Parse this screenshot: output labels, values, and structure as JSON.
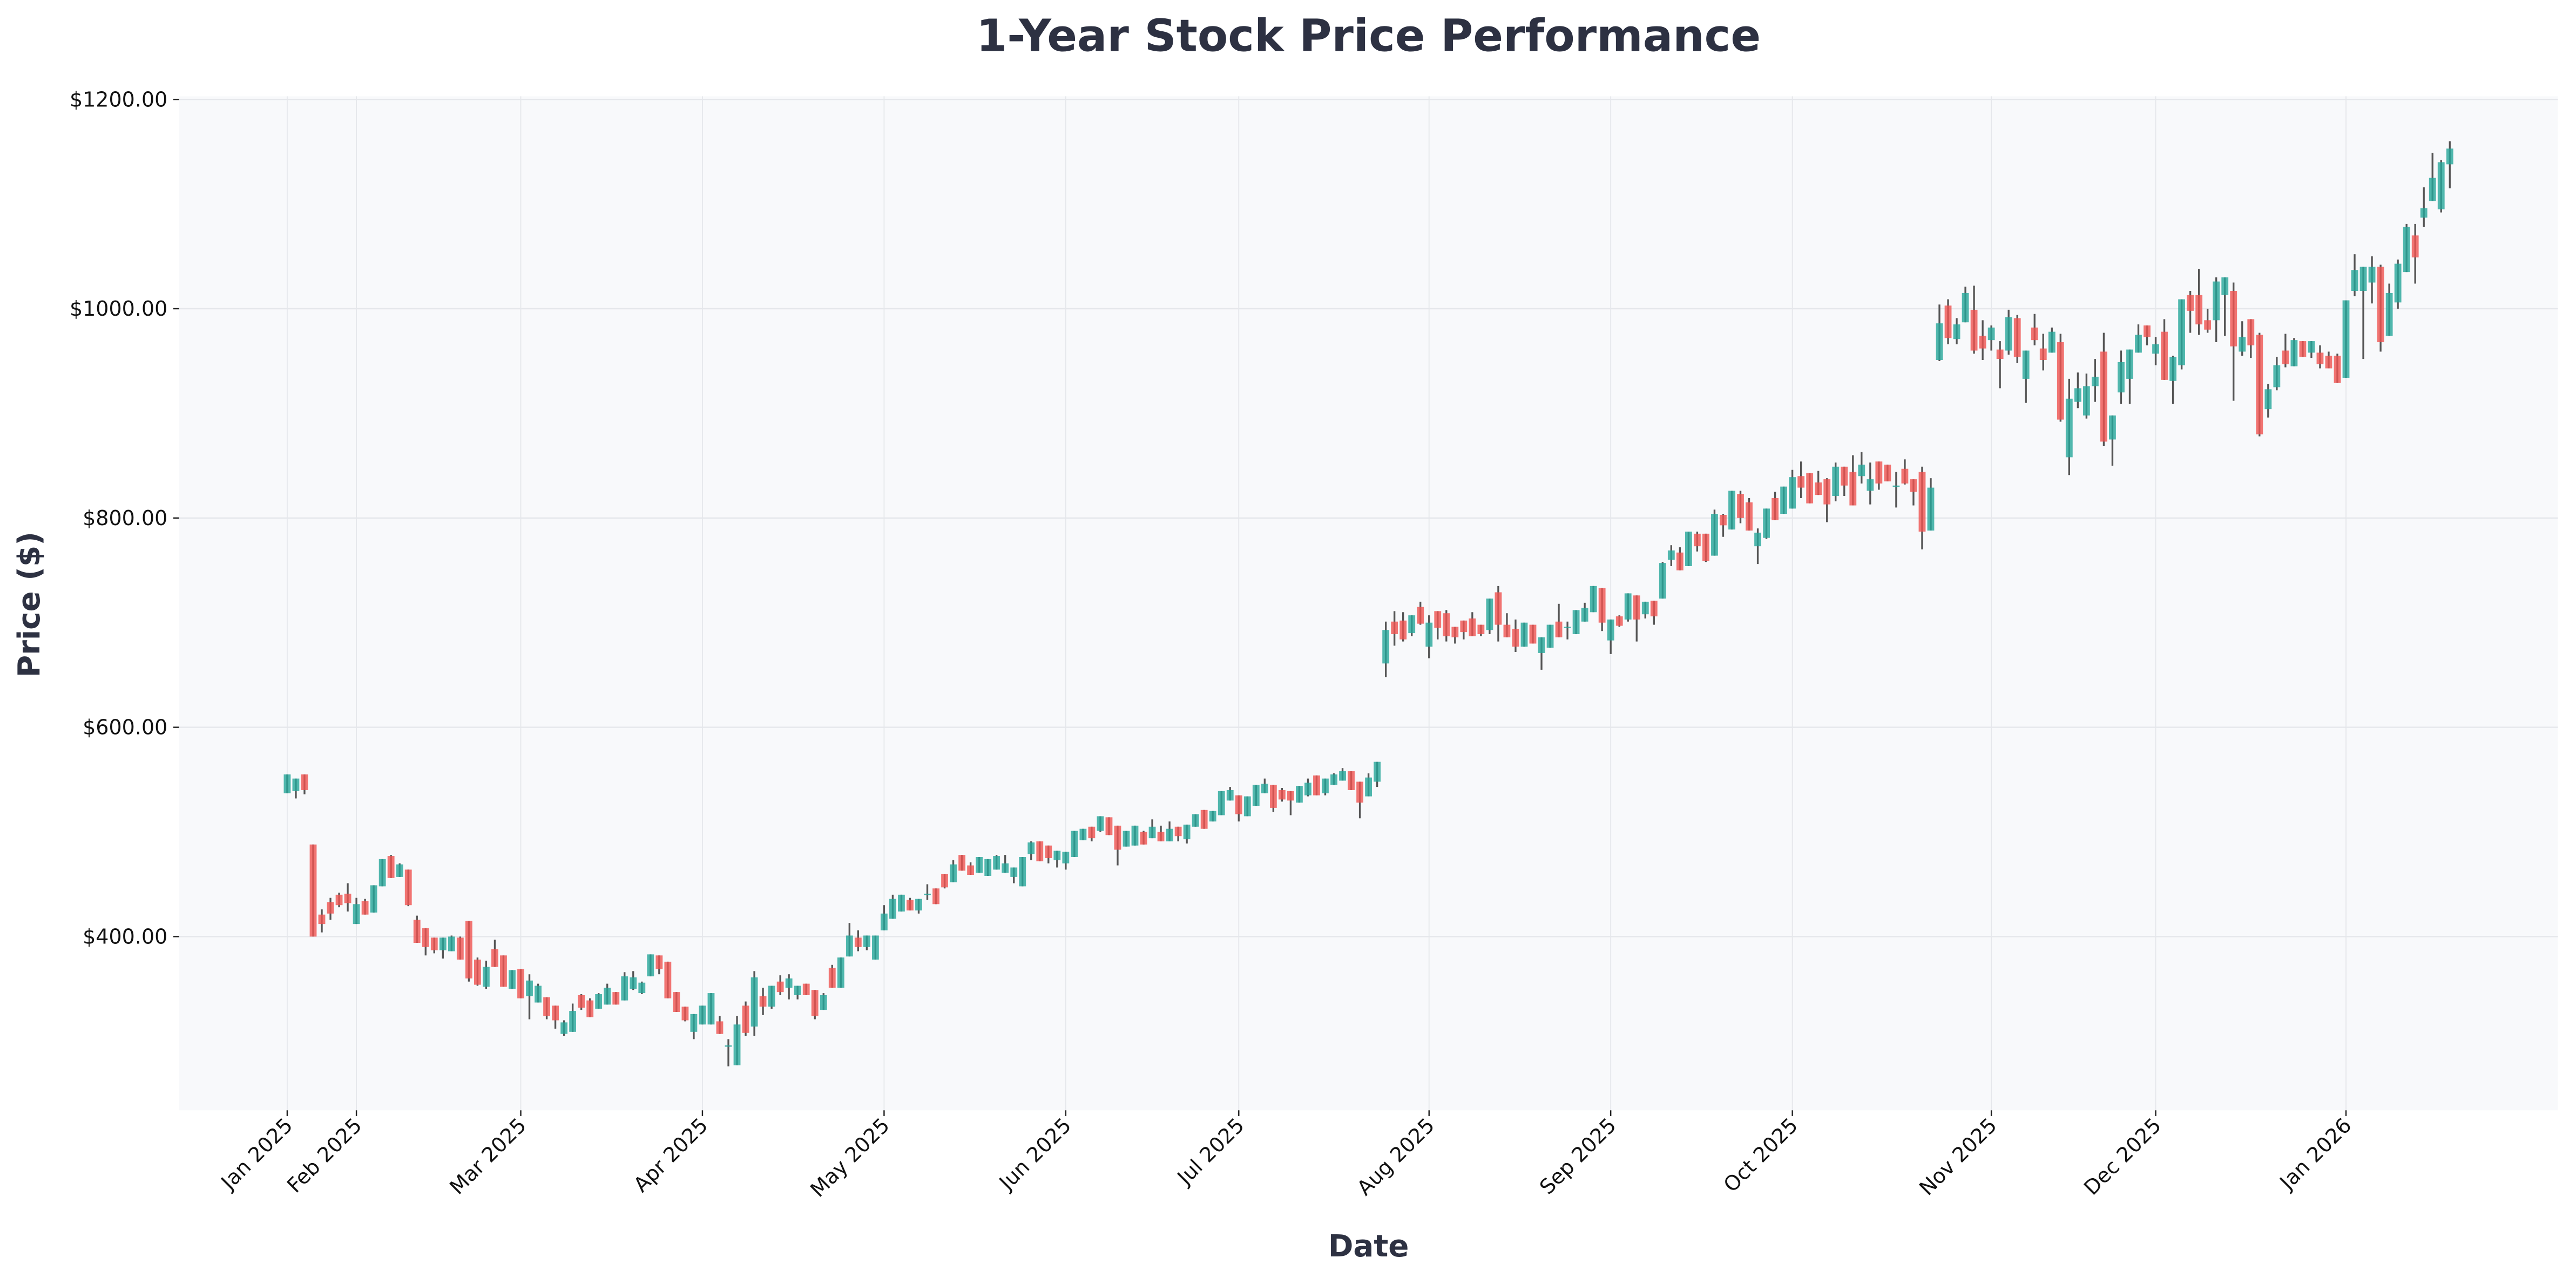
{
  "chart_data": {
    "type": "candlestick",
    "title": "1-Year Stock Price Performance",
    "xlabel": "Date",
    "ylabel": "Price ($)",
    "ylim": [
      234,
      1203
    ],
    "xlim": [
      -12.5,
      262.5
    ],
    "grid": true,
    "colors": {
      "up": "#26a69a",
      "down": "#ef5350",
      "wick": "#555555",
      "plot_bg": "#f8f9fb",
      "grid": "#e5e7eb",
      "title": "#2d3142"
    },
    "y_ticks": [
      {
        "value": 400,
        "label": "$400.00"
      },
      {
        "value": 600,
        "label": "$600.00"
      },
      {
        "value": 800,
        "label": "$800.00"
      },
      {
        "value": 1000,
        "label": "$1000.00"
      },
      {
        "value": 1200,
        "label": "$1200.00"
      }
    ],
    "x_ticks": [
      {
        "index": 0,
        "label": "Jan 2025"
      },
      {
        "index": 8,
        "label": "Feb 2025"
      },
      {
        "index": 27,
        "label": "Mar 2025"
      },
      {
        "index": 48,
        "label": "Apr 2025"
      },
      {
        "index": 69,
        "label": "May 2025"
      },
      {
        "index": 90,
        "label": "Jun 2025"
      },
      {
        "index": 110,
        "label": "Jul 2025"
      },
      {
        "index": 132,
        "label": "Aug 2025"
      },
      {
        "index": 153,
        "label": "Sep 2025"
      },
      {
        "index": 174,
        "label": "Oct 2025"
      },
      {
        "index": 197,
        "label": "Nov 2025"
      },
      {
        "index": 216,
        "label": "Dec 2025"
      },
      {
        "index": 238,
        "label": "Jan 2026"
      }
    ],
    "ohlc_fields": [
      "open",
      "high",
      "low",
      "close"
    ],
    "ohlc": [
      [
        537,
        555,
        537,
        555
      ],
      [
        539,
        551,
        532,
        551
      ],
      [
        555,
        555,
        536,
        540
      ],
      [
        488,
        488,
        400,
        400
      ],
      [
        421,
        426,
        404,
        412
      ],
      [
        433,
        437,
        416,
        422
      ],
      [
        440,
        442,
        428,
        430
      ],
      [
        441,
        451,
        424,
        432
      ],
      [
        412,
        437,
        412,
        431
      ],
      [
        434,
        436,
        421,
        421
      ],
      [
        423,
        449,
        423,
        449
      ],
      [
        448,
        474,
        448,
        474
      ],
      [
        477,
        478,
        456,
        456
      ],
      [
        457,
        470,
        457,
        469
      ],
      [
        464,
        464,
        429,
        430
      ],
      [
        416,
        420,
        394,
        394
      ],
      [
        408,
        408,
        382,
        390
      ],
      [
        399,
        399,
        384,
        387
      ],
      [
        387,
        399,
        379,
        399
      ],
      [
        386,
        401,
        386,
        400
      ],
      [
        399,
        400,
        378,
        378
      ],
      [
        415,
        415,
        357,
        360
      ],
      [
        378,
        380,
        353,
        354
      ],
      [
        352,
        377,
        350,
        371
      ],
      [
        388,
        397,
        371,
        371
      ],
      [
        382,
        382,
        352,
        352
      ],
      [
        350,
        368,
        350,
        368
      ],
      [
        369,
        369,
        341,
        341
      ],
      [
        343,
        364,
        321,
        358
      ],
      [
        337,
        355,
        337,
        353
      ],
      [
        342,
        342,
        321,
        324
      ],
      [
        334,
        334,
        312,
        320
      ],
      [
        307,
        320,
        305,
        318
      ],
      [
        309,
        336,
        309,
        329
      ],
      [
        344,
        345,
        330,
        332
      ],
      [
        339,
        341,
        323,
        323
      ],
      [
        331,
        346,
        331,
        345
      ],
      [
        335,
        355,
        335,
        351
      ],
      [
        347,
        347,
        335,
        335
      ],
      [
        339,
        366,
        339,
        362
      ],
      [
        350,
        367,
        349,
        361
      ],
      [
        346,
        357,
        345,
        356
      ],
      [
        362,
        383,
        362,
        383
      ],
      [
        382,
        382,
        364,
        369
      ],
      [
        376,
        376,
        341,
        341
      ],
      [
        347,
        347,
        328,
        328
      ],
      [
        333,
        333,
        319,
        320
      ],
      [
        309,
        326,
        302,
        326
      ],
      [
        316,
        334,
        316,
        334
      ],
      [
        316,
        346,
        316,
        346
      ],
      [
        319,
        324,
        307,
        307
      ],
      [
        295,
        302,
        276,
        296
      ],
      [
        277,
        324,
        277,
        316
      ],
      [
        334,
        338,
        305,
        308
      ],
      [
        314,
        367,
        305,
        361
      ],
      [
        343,
        351,
        325,
        333
      ],
      [
        333,
        353,
        331,
        353
      ],
      [
        357,
        363,
        344,
        347
      ],
      [
        351,
        364,
        340,
        360
      ],
      [
        344,
        353,
        340,
        353
      ],
      [
        355,
        355,
        344,
        344
      ],
      [
        349,
        349,
        321,
        324
      ],
      [
        330,
        346,
        330,
        344
      ],
      [
        370,
        373,
        351,
        351
      ],
      [
        351,
        380,
        351,
        380
      ],
      [
        381,
        413,
        381,
        401
      ],
      [
        399,
        406,
        386,
        390
      ],
      [
        390,
        401,
        387,
        401
      ],
      [
        378,
        401,
        378,
        401
      ],
      [
        406,
        430,
        406,
        422
      ],
      [
        417,
        440,
        417,
        436
      ],
      [
        424,
        440,
        424,
        440
      ],
      [
        435,
        437,
        425,
        425
      ],
      [
        425,
        436,
        422,
        436
      ],
      [
        440,
        450,
        435,
        441
      ],
      [
        446,
        446,
        431,
        431
      ],
      [
        460,
        460,
        446,
        447
      ],
      [
        452,
        473,
        452,
        469
      ],
      [
        478,
        478,
        463,
        463
      ],
      [
        468,
        471,
        459,
        459
      ],
      [
        461,
        476,
        461,
        476
      ],
      [
        458,
        474,
        458,
        474
      ],
      [
        464,
        478,
        464,
        477
      ],
      [
        461,
        478,
        461,
        470
      ],
      [
        457,
        466,
        451,
        466
      ],
      [
        448,
        476,
        448,
        476
      ],
      [
        479,
        491,
        473,
        490
      ],
      [
        491,
        491,
        472,
        472
      ],
      [
        487,
        487,
        470,
        475
      ],
      [
        473,
        482,
        466,
        482
      ],
      [
        470,
        481,
        464,
        481
      ],
      [
        476,
        501,
        476,
        501
      ],
      [
        492,
        503,
        492,
        503
      ],
      [
        505,
        505,
        491,
        494
      ],
      [
        501,
        515,
        500,
        515
      ],
      [
        514,
        514,
        497,
        497
      ],
      [
        506,
        506,
        468,
        483
      ],
      [
        486,
        501,
        486,
        501
      ],
      [
        487,
        506,
        487,
        506
      ],
      [
        500,
        501,
        488,
        488
      ],
      [
        494,
        512,
        494,
        505
      ],
      [
        500,
        506,
        491,
        491
      ],
      [
        491,
        510,
        491,
        503
      ],
      [
        505,
        505,
        491,
        496
      ],
      [
        493,
        507,
        489,
        507
      ],
      [
        505,
        517,
        505,
        517
      ],
      [
        521,
        521,
        503,
        503
      ],
      [
        510,
        520,
        510,
        520
      ],
      [
        516,
        539,
        516,
        539
      ],
      [
        530,
        543,
        530,
        540
      ],
      [
        535,
        535,
        510,
        517
      ],
      [
        515,
        534,
        515,
        534
      ],
      [
        525,
        545,
        525,
        545
      ],
      [
        537,
        551,
        537,
        546
      ],
      [
        545,
        545,
        519,
        523
      ],
      [
        540,
        542,
        529,
        531
      ],
      [
        539,
        539,
        516,
        530
      ],
      [
        528,
        544,
        528,
        544
      ],
      [
        535,
        551,
        534,
        547
      ],
      [
        554,
        554,
        535,
        535
      ],
      [
        537,
        551,
        535,
        551
      ],
      [
        545,
        556,
        545,
        555
      ],
      [
        549,
        561,
        549,
        558
      ],
      [
        558,
        558,
        540,
        540
      ],
      [
        548,
        548,
        513,
        528
      ],
      [
        534,
        556,
        534,
        552
      ],
      [
        548,
        567,
        543,
        567
      ],
      [
        661,
        701,
        648,
        693
      ],
      [
        701,
        711,
        678,
        689
      ],
      [
        702,
        710,
        682,
        684
      ],
      [
        690,
        707,
        687,
        707
      ],
      [
        715,
        720,
        698,
        699
      ],
      [
        677,
        707,
        666,
        700
      ],
      [
        711,
        711,
        684,
        695
      ],
      [
        709,
        712,
        682,
        687
      ],
      [
        696,
        696,
        680,
        686
      ],
      [
        702,
        702,
        684,
        691
      ],
      [
        704,
        710,
        687,
        687
      ],
      [
        698,
        698,
        687,
        689
      ],
      [
        693,
        723,
        689,
        723
      ],
      [
        729,
        735,
        682,
        698
      ],
      [
        698,
        709,
        686,
        686
      ],
      [
        694,
        703,
        672,
        677
      ],
      [
        677,
        700,
        677,
        700
      ],
      [
        698,
        698,
        680,
        680
      ],
      [
        671,
        686,
        655,
        686
      ],
      [
        676,
        698,
        676,
        698
      ],
      [
        701,
        718,
        686,
        686
      ],
      [
        695,
        701,
        684,
        696
      ],
      [
        689,
        712,
        689,
        712
      ],
      [
        701,
        719,
        701,
        714
      ],
      [
        710,
        735,
        710,
        735
      ],
      [
        733,
        733,
        692,
        700
      ],
      [
        683,
        703,
        670,
        703
      ],
      [
        706,
        707,
        696,
        697
      ],
      [
        703,
        728,
        701,
        728
      ],
      [
        726,
        726,
        682,
        703
      ],
      [
        708,
        720,
        704,
        720
      ],
      [
        721,
        721,
        698,
        706
      ],
      [
        723,
        758,
        723,
        757
      ],
      [
        760,
        774,
        754,
        769
      ],
      [
        767,
        772,
        750,
        750
      ],
      [
        754,
        787,
        754,
        787
      ],
      [
        785,
        787,
        768,
        773
      ],
      [
        785,
        785,
        758,
        759
      ],
      [
        764,
        808,
        764,
        804
      ],
      [
        803,
        804,
        782,
        793
      ],
      [
        789,
        826,
        789,
        826
      ],
      [
        823,
        826,
        795,
        800
      ],
      [
        815,
        819,
        788,
        788
      ],
      [
        773,
        790,
        756,
        786
      ],
      [
        781,
        809,
        780,
        809
      ],
      [
        819,
        825,
        798,
        798
      ],
      [
        804,
        830,
        804,
        830
      ],
      [
        809,
        846,
        809,
        839
      ],
      [
        840,
        854,
        819,
        829
      ],
      [
        843,
        843,
        814,
        814
      ],
      [
        834,
        845,
        822,
        822
      ],
      [
        837,
        838,
        796,
        813
      ],
      [
        821,
        853,
        816,
        849
      ],
      [
        849,
        849,
        821,
        831
      ],
      [
        844,
        860,
        812,
        812
      ],
      [
        840,
        863,
        833,
        851
      ],
      [
        826,
        853,
        813,
        837
      ],
      [
        854,
        854,
        827,
        833
      ],
      [
        851,
        851,
        835,
        835
      ],
      [
        830,
        844,
        810,
        831
      ],
      [
        847,
        856,
        832,
        833
      ],
      [
        837,
        837,
        812,
        825
      ],
      [
        844,
        849,
        770,
        787
      ],
      [
        788,
        838,
        788,
        829
      ],
      [
        951,
        1004,
        950,
        986
      ],
      [
        1003,
        1009,
        966,
        972
      ],
      [
        971,
        991,
        966,
        985
      ],
      [
        987,
        1021,
        987,
        1015
      ],
      [
        999,
        1022,
        957,
        960
      ],
      [
        974,
        989,
        951,
        962
      ],
      [
        970,
        984,
        960,
        982
      ],
      [
        961,
        969,
        924,
        952
      ],
      [
        960,
        999,
        956,
        992
      ],
      [
        991,
        994,
        948,
        954
      ],
      [
        933,
        960,
        910,
        960
      ],
      [
        982,
        995,
        965,
        970
      ],
      [
        962,
        976,
        941,
        951
      ],
      [
        958,
        982,
        958,
        978
      ],
      [
        968,
        976,
        892,
        894
      ],
      [
        858,
        933,
        841,
        914
      ],
      [
        911,
        939,
        905,
        924
      ],
      [
        898,
        938,
        895,
        926
      ],
      [
        926,
        952,
        911,
        935
      ],
      [
        959,
        977,
        869,
        873
      ],
      [
        875,
        898,
        850,
        898
      ],
      [
        920,
        960,
        909,
        949
      ],
      [
        933,
        961,
        909,
        961
      ],
      [
        958,
        985,
        958,
        975
      ],
      [
        984,
        984,
        965,
        973
      ],
      [
        957,
        973,
        946,
        966
      ],
      [
        978,
        990,
        932,
        932
      ],
      [
        931,
        955,
        909,
        954
      ],
      [
        946,
        1009,
        942,
        1009
      ],
      [
        1013,
        1017,
        977,
        998
      ],
      [
        1013,
        1038,
        975,
        985
      ],
      [
        989,
        1000,
        977,
        980
      ],
      [
        989,
        1030,
        968,
        1026
      ],
      [
        1013,
        1030,
        974,
        1030
      ],
      [
        1017,
        1025,
        912,
        964
      ],
      [
        959,
        988,
        955,
        973
      ],
      [
        990,
        990,
        953,
        965
      ],
      [
        975,
        977,
        878,
        880
      ],
      [
        904,
        928,
        896,
        923
      ],
      [
        925,
        954,
        922,
        946
      ],
      [
        960,
        976,
        944,
        947
      ],
      [
        945,
        972,
        945,
        970
      ],
      [
        969,
        969,
        954,
        954
      ],
      [
        958,
        969,
        953,
        969
      ],
      [
        958,
        965,
        943,
        947
      ],
      [
        955,
        959,
        943,
        943
      ],
      [
        955,
        957,
        929,
        929
      ],
      [
        934,
        1008,
        934,
        1008
      ],
      [
        1017,
        1052,
        1012,
        1037
      ],
      [
        1017,
        1040,
        952,
        1040
      ],
      [
        1025,
        1050,
        1005,
        1040
      ],
      [
        1040,
        1042,
        959,
        968
      ],
      [
        974,
        1024,
        974,
        1015
      ],
      [
        1006,
        1047,
        1000,
        1043
      ],
      [
        1035,
        1081,
        1035,
        1078
      ],
      [
        1070,
        1081,
        1024,
        1049
      ],
      [
        1087,
        1116,
        1078,
        1096
      ],
      [
        1103,
        1149,
        1103,
        1125
      ],
      [
        1095,
        1142,
        1092,
        1140
      ],
      [
        1138,
        1160,
        1115,
        1153
      ]
    ]
  }
}
